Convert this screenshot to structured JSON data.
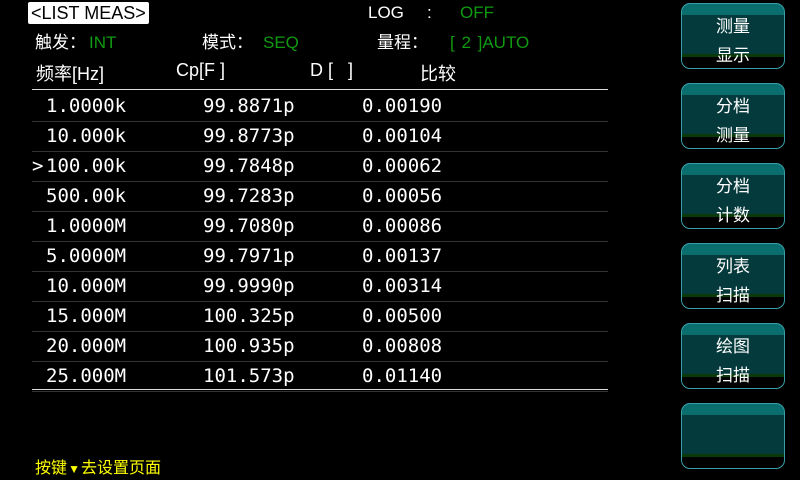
{
  "title": "<LIST MEAS>",
  "log": {
    "label": "LOG",
    "sep": ":",
    "value": "OFF"
  },
  "trigger": {
    "label": "触发：",
    "value": "INT"
  },
  "mode": {
    "label": "模式：",
    "value": "SEQ"
  },
  "range": {
    "label": "量程：",
    "value": "[ 2 ]AUTO"
  },
  "columns": [
    "频率[Hz]",
    "Cp[F ]",
    "D [   ]",
    "比较"
  ],
  "selected_row": 2,
  "selected_marker": ">",
  "rows": [
    [
      "1.0000k",
      "99.8871p",
      "0.00190"
    ],
    [
      "10.000k",
      "99.8773p",
      "0.00104"
    ],
    [
      "100.00k",
      "99.7848p",
      "0.00062"
    ],
    [
      "500.00k",
      "99.7283p",
      "0.00056"
    ],
    [
      "1.0000M",
      "99.7080p",
      "0.00086"
    ],
    [
      "5.0000M",
      "99.7971p",
      "0.00137"
    ],
    [
      "10.000M",
      "99.9990p",
      "0.00314"
    ],
    [
      "15.000M",
      "100.325p",
      "0.00500"
    ],
    [
      "20.000M",
      "100.935p",
      "0.00808"
    ],
    [
      "25.000M",
      "101.573p",
      "0.01140"
    ]
  ],
  "softkeys": [
    [
      "测量",
      "显示"
    ],
    [
      "分档",
      "测量"
    ],
    [
      "分档",
      "计数"
    ],
    [
      "列表",
      "扫描"
    ],
    [
      "绘图",
      "扫描"
    ],
    [
      "",
      ""
    ]
  ],
  "hint": {
    "prefix": "按键",
    "icon": "triangle-down-icon",
    "suffix": "去设置页面"
  },
  "colors": {
    "value_green": "#109a10",
    "hint_yellow": "#ffff00",
    "button_teal": "#0a6e6e"
  }
}
